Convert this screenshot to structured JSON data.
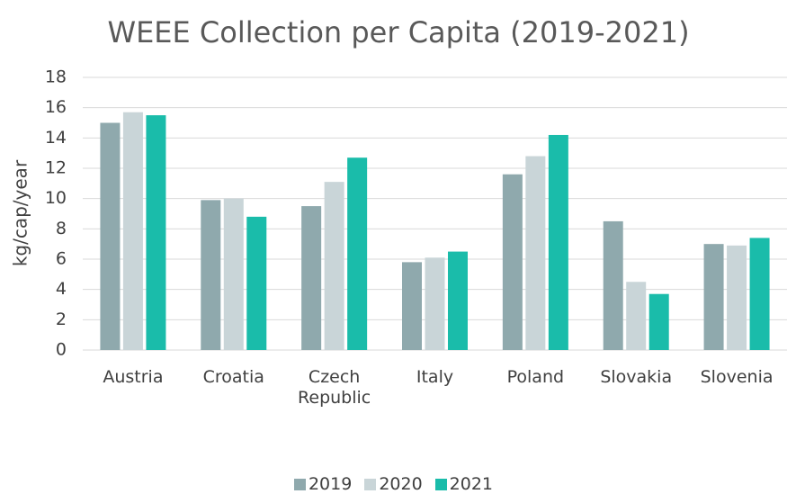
{
  "chart_data": {
    "type": "bar",
    "title": "WEEE Collection per Capita (2019-2021)",
    "y_label": "kg/cap/year",
    "categories": [
      "Austria",
      "Croatia",
      "Czech Republic",
      "Italy",
      "Poland",
      "Slovakia",
      "Slovenia"
    ],
    "series": [
      {
        "name": "2019",
        "color": "#8fa9ad",
        "values": [
          15.0,
          9.9,
          9.5,
          5.8,
          11.6,
          8.5,
          7.0
        ]
      },
      {
        "name": "2020",
        "color": "#c9d5d8",
        "values": [
          15.7,
          10.0,
          11.1,
          6.1,
          12.8,
          4.5,
          6.9
        ]
      },
      {
        "name": "2021",
        "color": "#1abcaa",
        "values": [
          15.5,
          8.8,
          12.7,
          6.5,
          14.2,
          3.7,
          7.4
        ]
      }
    ],
    "ylim": [
      0,
      18
    ],
    "yticks": [
      0,
      2,
      4,
      6,
      8,
      10,
      12,
      14,
      16,
      18
    ],
    "grid": true,
    "legend": "bottom"
  }
}
